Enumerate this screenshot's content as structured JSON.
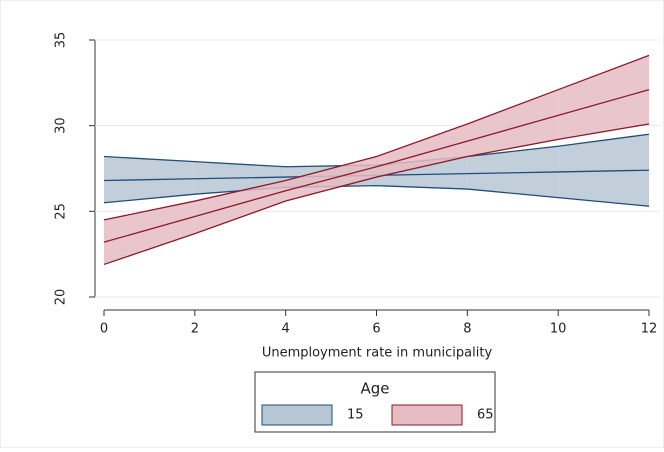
{
  "chart_data": {
    "type": "line",
    "x_label": "Unemployment rate in municipality",
    "x": [
      0,
      2,
      4,
      6,
      8,
      10,
      12
    ],
    "xlim": [
      0,
      12
    ],
    "xticks": [
      0,
      2,
      4,
      6,
      8,
      10,
      12
    ],
    "ylim": [
      20,
      35
    ],
    "yticks": [
      20,
      25,
      30,
      35
    ],
    "legend_title": "Age",
    "series": [
      {
        "name": "15",
        "color": "#1f4e79",
        "fill": "#b7c6d4",
        "values": [
          26.8,
          26.9,
          27.0,
          27.1,
          27.2,
          27.3,
          27.4
        ],
        "upper": [
          28.2,
          27.9,
          27.6,
          27.7,
          28.2,
          28.8,
          29.5
        ],
        "lower": [
          25.5,
          26.0,
          26.4,
          26.5,
          26.3,
          25.8,
          25.3
        ]
      },
      {
        "name": "65",
        "color": "#8b1a2b",
        "fill": "#e5bcc2",
        "values": [
          23.2,
          24.7,
          26.2,
          27.6,
          29.1,
          30.6,
          32.1
        ],
        "upper": [
          24.5,
          25.6,
          26.8,
          28.2,
          30.1,
          32.1,
          34.1
        ],
        "lower": [
          21.9,
          23.7,
          25.6,
          27.0,
          28.2,
          29.2,
          30.1
        ]
      }
    ]
  }
}
